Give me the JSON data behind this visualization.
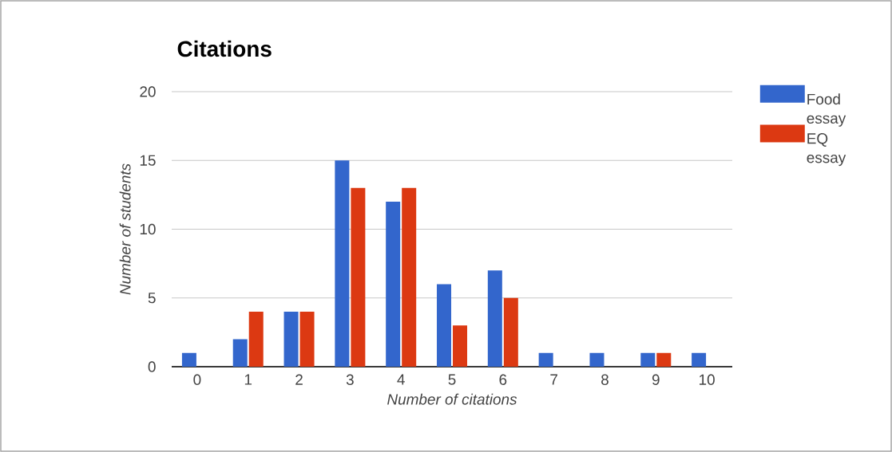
{
  "chart_data": {
    "type": "bar",
    "title": "Citations",
    "xlabel": "Number of citations",
    "ylabel": "Number of students",
    "categories": [
      "0",
      "1",
      "2",
      "3",
      "4",
      "5",
      "6",
      "7",
      "8",
      "9",
      "10"
    ],
    "series": [
      {
        "name": "Food essay",
        "color": "#3366cc",
        "values": [
          1,
          2,
          4,
          15,
          12,
          6,
          7,
          1,
          1,
          1,
          1
        ]
      },
      {
        "name": "EQ essay",
        "color": "#dc3912",
        "values": [
          0,
          4,
          4,
          13,
          13,
          3,
          5,
          0,
          0,
          1,
          0
        ]
      }
    ],
    "ylim": [
      0,
      20
    ],
    "yticks": [
      0,
      5,
      10,
      15,
      20
    ],
    "grid": "y",
    "legend": "top right"
  }
}
